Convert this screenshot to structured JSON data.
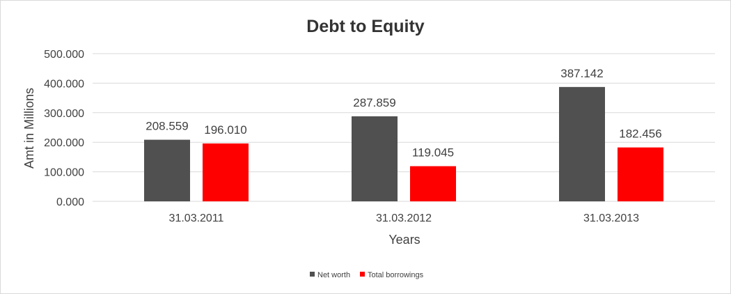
{
  "chart_data": {
    "type": "bar",
    "title": "Debt to Equity",
    "xlabel": "Years",
    "ylabel": "Amt in Millions",
    "categories": [
      "31.03.2011",
      "31.03.2012",
      "31.03.2013"
    ],
    "series": [
      {
        "name": "Net worth",
        "values": [
          208.559,
          287.859,
          387.142
        ],
        "labels": [
          "208.559",
          "287.859",
          "387.142"
        ],
        "color": "#505050"
      },
      {
        "name": "Total borrowings",
        "values": [
          196.01,
          119.045,
          182.456
        ],
        "labels": [
          "196.010",
          "119.045",
          "182.456"
        ],
        "color": "#ff0000"
      }
    ],
    "ylim": [
      0,
      500
    ],
    "yticks": [
      0,
      100,
      200,
      300,
      400,
      500
    ],
    "ytick_labels": [
      "0.000",
      "100.000",
      "200.000",
      "300.000",
      "400.000",
      "500.000"
    ],
    "grid": true,
    "legend": "bottom"
  }
}
